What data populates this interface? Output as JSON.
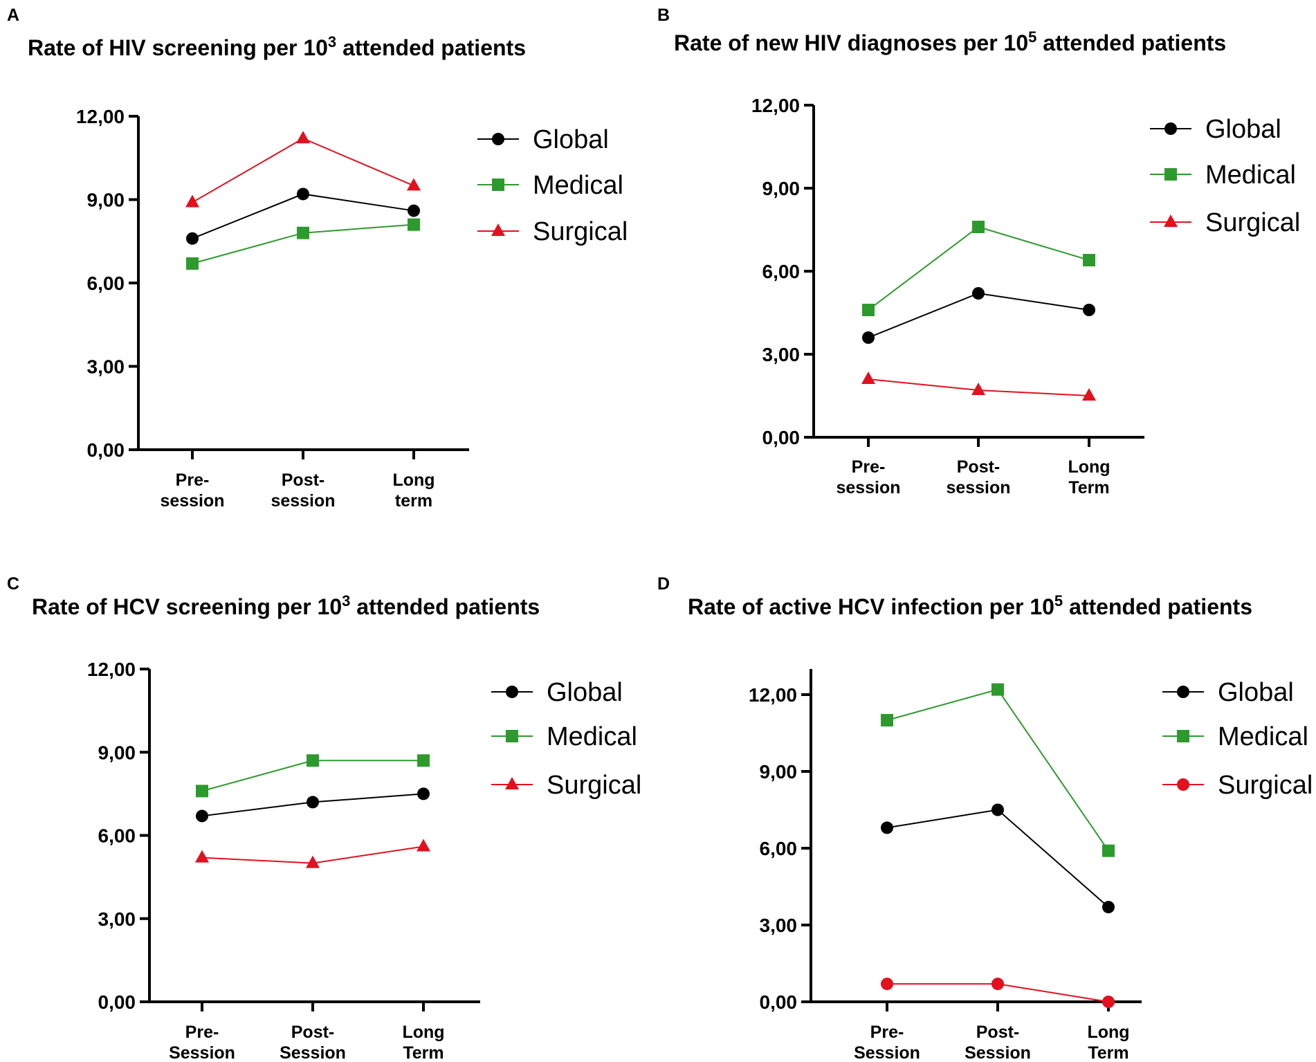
{
  "chart_data": [
    {
      "panel": "A",
      "type": "line",
      "title_main": "Rate of HIV screening per 10",
      "title_sup": "3",
      "title_rest": " attended patients",
      "categories": [
        [
          "Pre-",
          "session"
        ],
        [
          "Post-",
          "session"
        ],
        [
          "Long",
          "term"
        ]
      ],
      "ylim": [
        0,
        12
      ],
      "yticks": [
        "0,00",
        "3,00",
        "6,00",
        "9,00",
        "12,00"
      ],
      "ytick_values": [
        0,
        3,
        6,
        9,
        12
      ],
      "xlabel": "",
      "ylabel": "",
      "legend_position": "top-right",
      "series": [
        {
          "name": "Global",
          "marker": "circle",
          "color": "#000000",
          "values": [
            7.6,
            9.2,
            8.6
          ]
        },
        {
          "name": "Medical",
          "marker": "square",
          "color": "#2e9a2e",
          "values": [
            6.7,
            7.8,
            8.1
          ]
        },
        {
          "name": "Surgical",
          "marker": "triangle",
          "color": "#e3101e",
          "values": [
            8.9,
            11.2,
            9.5
          ]
        }
      ]
    },
    {
      "panel": "B",
      "type": "line",
      "title_main": "Rate of new HIV diagnoses per 10",
      "title_sup": "5",
      "title_rest": " attended patients",
      "categories": [
        [
          "Pre-",
          "session"
        ],
        [
          "Post-",
          "session"
        ],
        [
          "Long",
          "Term"
        ]
      ],
      "ylim": [
        0,
        12
      ],
      "yticks": [
        "0,00",
        "3,00",
        "6,00",
        "9,00",
        "12,00"
      ],
      "ytick_values": [
        0,
        3,
        6,
        9,
        12
      ],
      "xlabel": "",
      "ylabel": "",
      "legend_position": "top-right",
      "series": [
        {
          "name": "Global",
          "marker": "circle",
          "color": "#000000",
          "values": [
            3.6,
            5.2,
            4.6
          ]
        },
        {
          "name": "Medical",
          "marker": "square",
          "color": "#2e9a2e",
          "values": [
            4.6,
            7.6,
            6.4
          ]
        },
        {
          "name": "Surgical",
          "marker": "triangle",
          "color": "#e3101e",
          "values": [
            2.1,
            1.7,
            1.5
          ]
        }
      ]
    },
    {
      "panel": "C",
      "type": "line",
      "title_main": "Rate of HCV screening per 10",
      "title_sup": "3",
      "title_rest": " attended patients",
      "categories": [
        [
          "Pre-",
          "Session"
        ],
        [
          "Post-",
          "Session"
        ],
        [
          "Long",
          "Term"
        ]
      ],
      "ylim": [
        0,
        12
      ],
      "yticks": [
        "0,00",
        "3,00",
        "6,00",
        "9,00",
        "12,00"
      ],
      "ytick_values": [
        0,
        3,
        6,
        9,
        12
      ],
      "xlabel": "",
      "ylabel": "",
      "legend_position": "top-right",
      "series": [
        {
          "name": "Global",
          "marker": "circle",
          "color": "#000000",
          "values": [
            6.7,
            7.2,
            7.5
          ]
        },
        {
          "name": "Medical",
          "marker": "square",
          "color": "#2e9a2e",
          "values": [
            7.6,
            8.7,
            8.7
          ]
        },
        {
          "name": "Surgical",
          "marker": "triangle",
          "color": "#e3101e",
          "values": [
            5.2,
            5.0,
            5.6
          ]
        }
      ]
    },
    {
      "panel": "D",
      "type": "line",
      "title_main": "Rate of active HCV infection per 10",
      "title_sup": "5",
      "title_rest": " attended patients",
      "categories": [
        [
          "Pre-",
          "Session"
        ],
        [
          "Post-",
          "Session"
        ],
        [
          "Long",
          "Term"
        ]
      ],
      "ylim": [
        0,
        13
      ],
      "yticks": [
        "0,00",
        "3,00",
        "6,00",
        "9,00",
        "12,00"
      ],
      "ytick_values": [
        0,
        3,
        6,
        9,
        12
      ],
      "xlabel": "",
      "ylabel": "",
      "legend_position": "top-right",
      "series": [
        {
          "name": "Global",
          "marker": "circle",
          "color": "#000000",
          "values": [
            6.8,
            7.5,
            3.7
          ]
        },
        {
          "name": "Medical",
          "marker": "square",
          "color": "#2e9a2e",
          "values": [
            11.0,
            12.2,
            5.9
          ]
        },
        {
          "name": "Surgical",
          "marker": "circle",
          "color": "#e3101e",
          "values": [
            0.7,
            0.7,
            0.0
          ]
        }
      ]
    }
  ]
}
